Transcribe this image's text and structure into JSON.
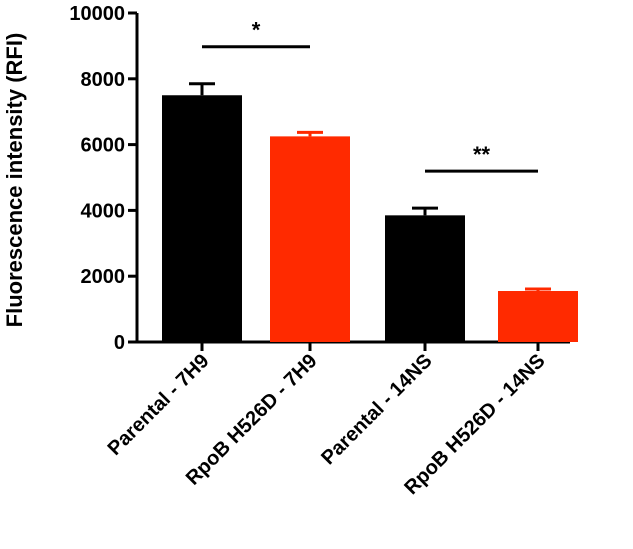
{
  "chart_data": {
    "type": "bar",
    "categories": [
      "Parental - 7H9",
      "RpoB H526D - 7H9",
      "Parental - 14NS",
      "RpoB H526D - 14NS"
    ],
    "values": [
      7500,
      6250,
      3850,
      1550
    ],
    "errors": [
      350,
      120,
      220,
      60
    ],
    "bar_colors": [
      "#000000",
      "#ff2a00",
      "#000000",
      "#ff2a00"
    ],
    "title": "",
    "xlabel": "",
    "ylabel": "Fluorescence intensity (RFI)",
    "ylim": [
      0,
      10000
    ],
    "yticks": [
      0,
      2000,
      4000,
      6000,
      8000,
      10000
    ],
    "grid": false,
    "significance": [
      {
        "pair": [
          0,
          1
        ],
        "label": "*"
      },
      {
        "pair": [
          2,
          3
        ],
        "label": "**"
      }
    ]
  }
}
